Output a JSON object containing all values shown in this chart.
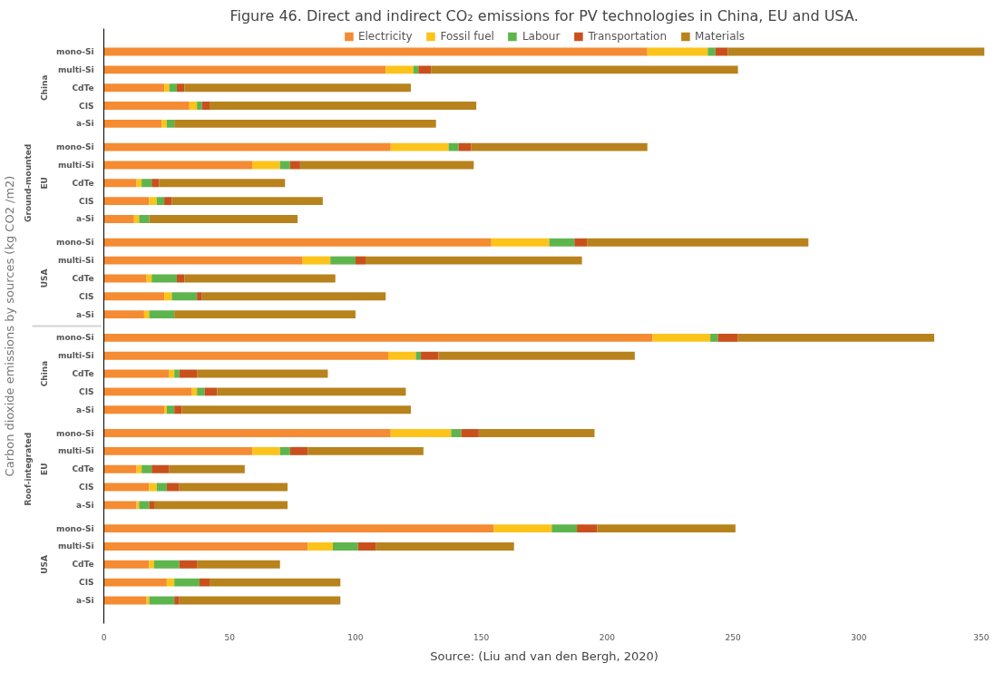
{
  "chart_data": {
    "type": "bar",
    "orientation": "horizontal",
    "stacked": true,
    "title": "Figure 46. Direct and indirect CO₂ emissions for PV technologies in China, EU and USA.",
    "ylabel": "Carbon dioxide emissions by sources (kg CO2 /m2)",
    "categories": [
      "mono-Si",
      "multi-Si",
      "CdTe",
      "CIS",
      "a-Si",
      "mono-Si",
      "multi-Si",
      "CdTe",
      "CIS",
      "a-Si",
      "mono-Si",
      "multi-Si",
      "CdTe",
      "CIS",
      "a-Si",
      "mono-Si",
      "multi-Si",
      "CdTe",
      "CIS",
      "a-Si",
      "mono-Si",
      "multi-Si",
      "CdTe",
      "CIS",
      "a-Si",
      "mono-Si",
      "multi-Si",
      "CdTe",
      "CIS",
      "a-Si"
    ],
    "series": [
      {
        "name": "Electricity",
        "color": "#f58b32",
        "values": [
          216,
          112,
          24,
          34,
          23,
          114,
          59,
          13,
          18,
          12,
          154,
          79,
          17,
          24,
          16,
          218,
          113,
          26,
          35,
          24,
          114,
          59,
          13,
          18,
          13,
          155,
          81,
          18,
          25,
          17
        ]
      },
      {
        "name": "Fossil fuel",
        "color": "#fcc41a",
        "values": [
          24,
          11,
          2,
          3,
          2,
          23,
          11,
          2,
          3,
          2,
          23,
          11,
          2,
          3,
          2,
          23,
          11,
          2,
          2,
          1,
          24,
          11,
          2,
          3,
          1,
          23,
          10,
          2,
          3,
          1
        ]
      },
      {
        "name": "Labour",
        "color": "#5fb54d",
        "values": [
          3,
          2,
          3,
          2,
          3,
          4,
          4,
          4,
          3,
          4,
          10,
          10,
          10,
          10,
          10,
          3,
          2,
          2,
          3,
          3,
          4,
          4,
          4,
          4,
          4,
          10,
          10,
          10,
          10,
          10
        ]
      },
      {
        "name": "Transportation",
        "color": "#c9501c",
        "values": [
          5,
          5,
          3,
          3,
          0,
          5,
          4,
          3,
          3,
          0,
          5,
          4,
          3,
          2,
          0,
          8,
          7,
          7,
          5,
          3,
          7,
          7,
          7,
          5,
          2,
          8,
          7,
          7,
          4,
          2
        ]
      },
      {
        "name": "Materials",
        "color": "#b8821c",
        "values": [
          102,
          122,
          90,
          106,
          104,
          70,
          69,
          50,
          60,
          59,
          88,
          86,
          60,
          73,
          72,
          78,
          78,
          52,
          75,
          91,
          46,
          46,
          30,
          43,
          53,
          55,
          55,
          33,
          52,
          64
        ]
      }
    ],
    "xlim": [
      0,
      350
    ],
    "xticks": [
      0,
      50,
      100,
      150,
      200,
      250,
      300,
      350
    ],
    "grid": false,
    "legend": "top",
    "annotations": [
      "Ground-mounted",
      "China",
      "EU",
      "USA",
      "Roof-integrated",
      "China",
      "EU",
      "USA",
      "Source: (Liu and van den Bergh, 2020)"
    ]
  }
}
